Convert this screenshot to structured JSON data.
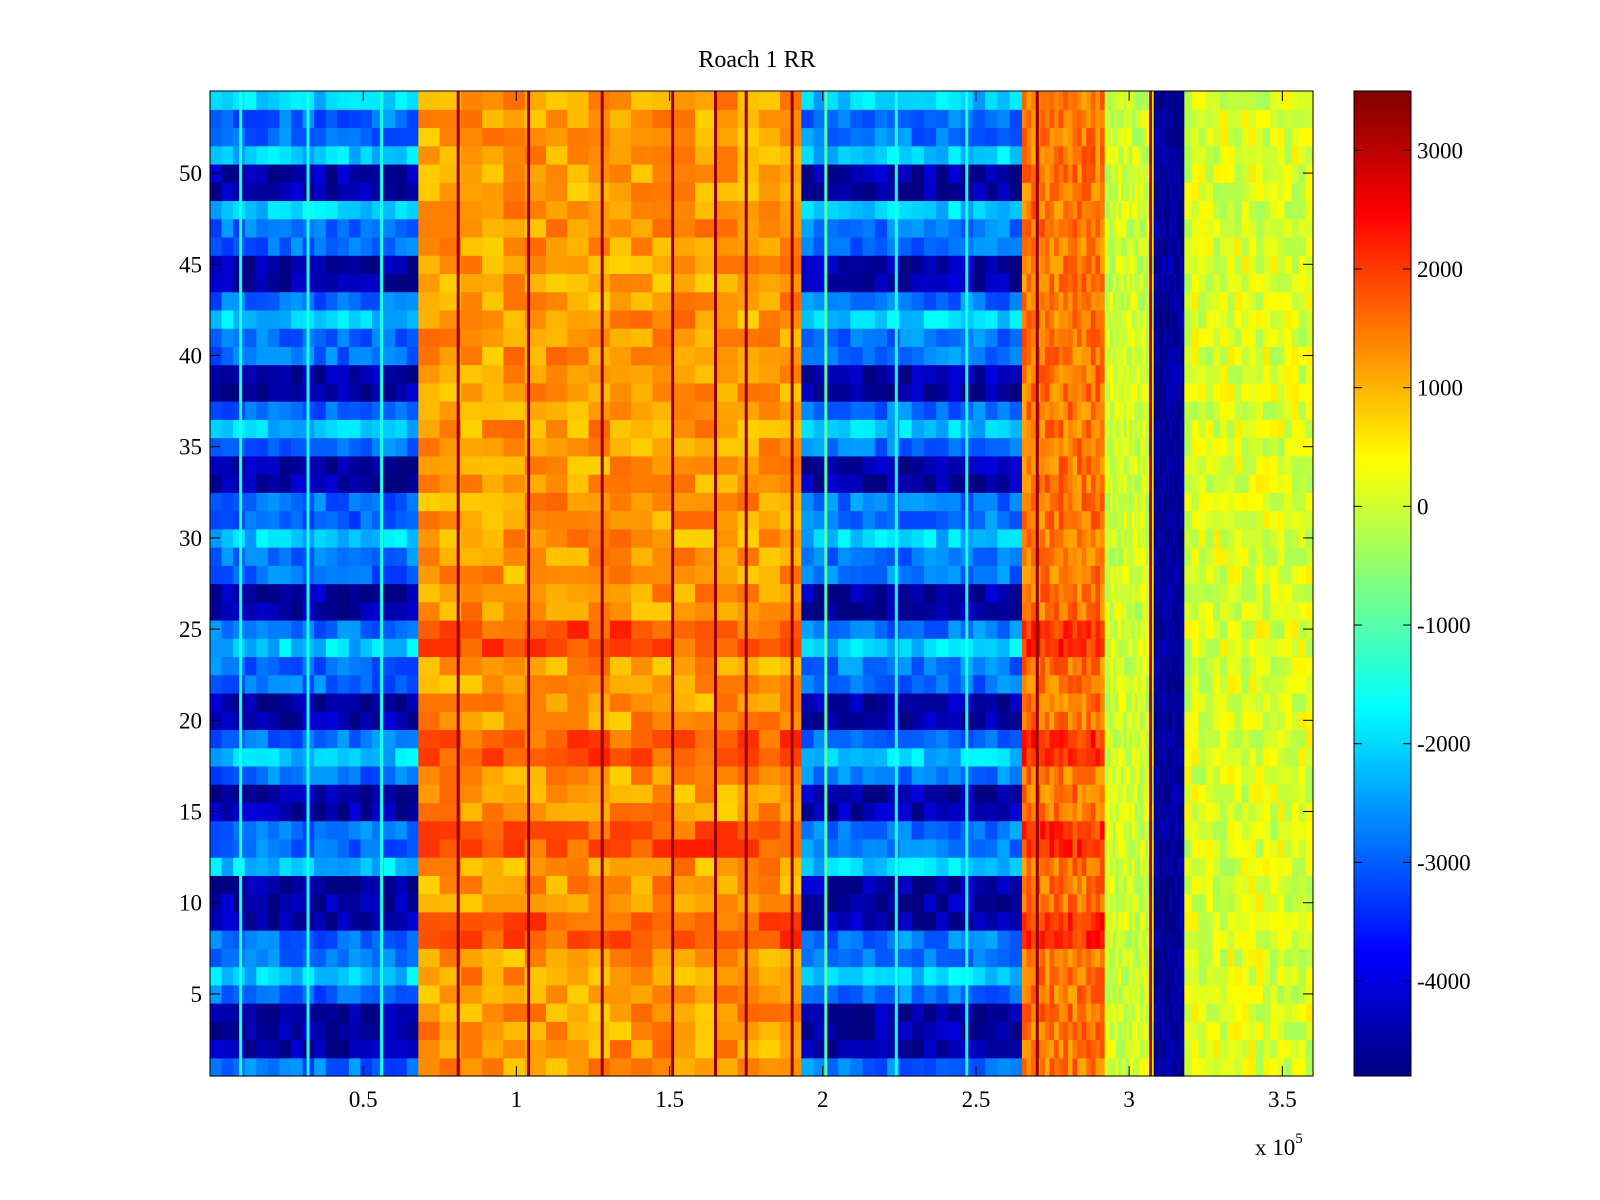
{
  "chart_data": {
    "type": "heatmap",
    "title": "Roach 1 RR",
    "xlabel": "",
    "ylabel": "",
    "x_range": [
      0,
      360000
    ],
    "y_range": [
      0.5,
      54.5
    ],
    "x_ticks": [
      50000,
      100000,
      150000,
      200000,
      250000,
      300000,
      350000
    ],
    "x_tick_labels": [
      "0.5",
      "1",
      "1.5",
      "2",
      "2.5",
      "3",
      "3.5"
    ],
    "x_exponent_label": {
      "base": "x 10",
      "exponent": "5"
    },
    "y_ticks": [
      5,
      10,
      15,
      20,
      25,
      30,
      35,
      40,
      45,
      50
    ],
    "y_tick_labels": [
      "5",
      "10",
      "15",
      "20",
      "25",
      "30",
      "35",
      "40",
      "45",
      "50"
    ],
    "rows": 54,
    "colorbar": {
      "colormap": "jet",
      "range": [
        -4800,
        3500
      ],
      "ticks": [
        3000,
        2000,
        1000,
        0,
        -1000,
        -2000,
        -3000,
        -4000
      ],
      "tick_labels": [
        "3000",
        "2000",
        "1000",
        "0",
        "-1000",
        "-2000",
        "-3000",
        "-4000"
      ]
    },
    "column_bands": [
      {
        "x_start": 0,
        "x_end": 68000,
        "value": -2900,
        "row_modulated": true
      },
      {
        "x_start": 68000,
        "x_end": 193000,
        "value": 1200,
        "row_modulated": false
      },
      {
        "x_start": 193000,
        "x_end": 265000,
        "value": -2800,
        "row_modulated": true
      },
      {
        "x_start": 265000,
        "x_end": 292000,
        "value": 1500,
        "row_modulated": false
      },
      {
        "x_start": 292000,
        "x_end": 308000,
        "value": 0,
        "row_modulated": false
      },
      {
        "x_start": 308000,
        "x_end": 318000,
        "value": -4600,
        "row_modulated": false
      },
      {
        "x_start": 318000,
        "x_end": 360000,
        "value": 100,
        "row_modulated": false
      }
    ],
    "dark_rows_blue_region": [
      2,
      3,
      4,
      9,
      10,
      11,
      15,
      16,
      20,
      21,
      26,
      27,
      33,
      34,
      38,
      39,
      44,
      45,
      49,
      50
    ],
    "hot_rows_orange_region": [
      8,
      9,
      13,
      14,
      18,
      19,
      24,
      25
    ],
    "vertical_lines": [
      {
        "x": 10000,
        "value": -1500
      },
      {
        "x": 32000,
        "value": -1500
      },
      {
        "x": 56000,
        "value": -1500
      },
      {
        "x": 81000,
        "value": 3300
      },
      {
        "x": 104000,
        "value": 3300
      },
      {
        "x": 128000,
        "value": 3300
      },
      {
        "x": 151000,
        "value": 3300
      },
      {
        "x": 165000,
        "value": 3300
      },
      {
        "x": 175000,
        "value": 3300
      },
      {
        "x": 190000,
        "value": 3300
      },
      {
        "x": 201000,
        "value": -1000
      },
      {
        "x": 224000,
        "value": -1500
      },
      {
        "x": 247000,
        "value": -1500
      },
      {
        "x": 270000,
        "value": 3300
      },
      {
        "x": 307000,
        "value": 3000
      }
    ]
  }
}
